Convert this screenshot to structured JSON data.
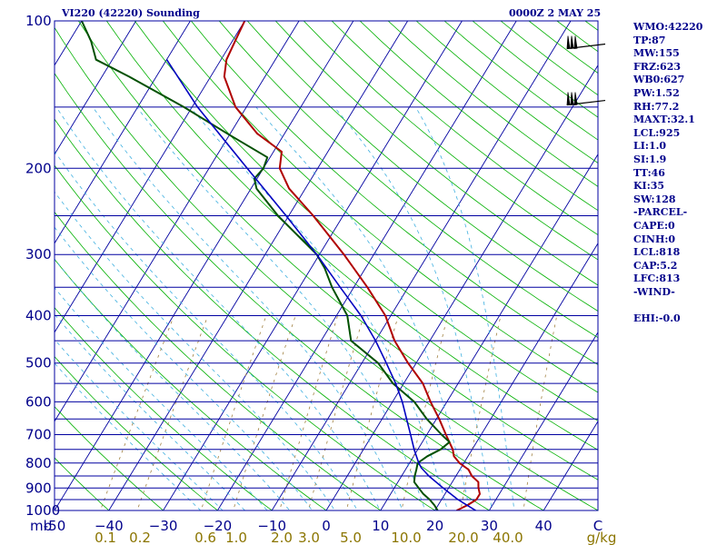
{
  "header": {
    "title_left": "VI220 (42220) Sounding",
    "title_right": "0000Z  2 MAY 25"
  },
  "indices": [
    "WMO:42220",
    "TP:87",
    "MW:155",
    "FRZ:623",
    "WB0:627",
    "PW:1.52",
    "RH:77.2",
    "MAXT:32.1",
    "LCL:925",
    "LI:1.0",
    "SI:1.9",
    "TT:46",
    "KI:35",
    "SW:128",
    "-PARCEL-",
    "CAPE:0",
    "CINH:0",
    "LCL:818",
    "CAP:5.2",
    "LFC:813",
    "-WIND-",
    "",
    "EHI:-0.0"
  ],
  "chart_data": {
    "type": "line",
    "chart_kind": "skew-t log-p sounding",
    "pressure_unit_label": "mb",
    "mixing_ratio_unit_label": "g/kg",
    "pressure_ticks": [
      1000,
      900,
      800,
      700,
      600,
      500,
      400,
      300,
      200,
      100
    ],
    "temperature_ticks": [
      -50,
      -40,
      -30,
      -20,
      -10,
      0,
      10,
      20,
      30,
      40
    ],
    "temperature_tick_labels": [
      "-50",
      "−40",
      "−30",
      "−20",
      "−10",
      "0",
      "10",
      "20",
      "30",
      "40"
    ],
    "temperature_last_label": "C",
    "mixing_ratio_ticks": [
      0.1,
      0.2,
      0.6,
      1.0,
      2.0,
      3.0,
      5.0,
      10.0,
      20.0,
      40.0
    ],
    "mixing_ratio_labels": [
      "0.1",
      "0.2",
      "0.6",
      "1.0",
      "2.0",
      "3.0",
      "5.0",
      "10.0",
      "20.0",
      "40.0"
    ],
    "isobars": [
      1000,
      950,
      900,
      850,
      800,
      750,
      700,
      650,
      600,
      550,
      500,
      450,
      400,
      350,
      300,
      250,
      200,
      150,
      100
    ],
    "xlim": [
      -50,
      50
    ],
    "plim": [
      1000,
      100
    ],
    "colors": {
      "temperature": "#b00000",
      "dewpoint": "#005000",
      "parcel": "#0000c0",
      "isobar": "#0000a0",
      "isotherm": "#0000a0",
      "dry_adiabat": "#00b000",
      "moist_adiabat": "#40b0e0",
      "mixing_ratio": "#a08040",
      "axis_text": "#00008b",
      "mr_text": "#8b7500"
    },
    "series": [
      {
        "id": "temperature",
        "points": [
          {
            "p": 1000,
            "t": 24.0
          },
          {
            "p": 975,
            "t": 25.4
          },
          {
            "p": 950,
            "t": 26.4
          },
          {
            "p": 925,
            "t": 26.4
          },
          {
            "p": 900,
            "t": 25.5
          },
          {
            "p": 875,
            "t": 24.8
          },
          {
            "p": 850,
            "t": 22.9
          },
          {
            "p": 825,
            "t": 21.6
          },
          {
            "p": 800,
            "t": 19.2
          },
          {
            "p": 775,
            "t": 17.4
          },
          {
            "p": 750,
            "t": 16.4
          },
          {
            "p": 700,
            "t": 13.5
          },
          {
            "p": 650,
            "t": 10.5
          },
          {
            "p": 600,
            "t": 7.0
          },
          {
            "p": 550,
            "t": 3.5
          },
          {
            "p": 500,
            "t": -1.5
          },
          {
            "p": 450,
            "t": -6.5
          },
          {
            "p": 400,
            "t": -11.0
          },
          {
            "p": 350,
            "t": -17.5
          },
          {
            "p": 300,
            "t": -25.5
          },
          {
            "p": 250,
            "t": -35.5
          },
          {
            "p": 220,
            "t": -43.0
          },
          {
            "p": 200,
            "t": -47.0
          },
          {
            "p": 185,
            "t": -48.5
          },
          {
            "p": 170,
            "t": -55.0
          },
          {
            "p": 150,
            "t": -62.0
          },
          {
            "p": 130,
            "t": -67.5
          },
          {
            "p": 120,
            "t": -69.0
          },
          {
            "p": 110,
            "t": -69.5
          },
          {
            "p": 100,
            "t": -70.0
          }
        ]
      },
      {
        "id": "dewpoint",
        "points": [
          {
            "p": 1000,
            "t": 20.5
          },
          {
            "p": 975,
            "t": 19.3
          },
          {
            "p": 950,
            "t": 17.8
          },
          {
            "p": 925,
            "t": 16.0
          },
          {
            "p": 900,
            "t": 14.5
          },
          {
            "p": 875,
            "t": 13.0
          },
          {
            "p": 850,
            "t": 12.4
          },
          {
            "p": 825,
            "t": 12.0
          },
          {
            "p": 800,
            "t": 11.5
          },
          {
            "p": 775,
            "t": 12.5
          },
          {
            "p": 750,
            "t": 14.2
          },
          {
            "p": 725,
            "t": 15.0
          },
          {
            "p": 700,
            "t": 12.7
          },
          {
            "p": 650,
            "t": 8.2
          },
          {
            "p": 600,
            "t": 4.0
          },
          {
            "p": 550,
            "t": -2.0
          },
          {
            "p": 500,
            "t": -7.0
          },
          {
            "p": 450,
            "t": -14.5
          },
          {
            "p": 400,
            "t": -18.0
          },
          {
            "p": 350,
            "t": -24.0
          },
          {
            "p": 320,
            "t": -27.5
          },
          {
            "p": 300,
            "t": -30.5
          },
          {
            "p": 250,
            "t": -42.0
          },
          {
            "p": 220,
            "t": -49.0
          },
          {
            "p": 210,
            "t": -50.5
          },
          {
            "p": 200,
            "t": -50.0
          },
          {
            "p": 190,
            "t": -50.5
          },
          {
            "p": 170,
            "t": -60.5
          },
          {
            "p": 150,
            "t": -71.5
          },
          {
            "p": 130,
            "t": -85.0
          },
          {
            "p": 120,
            "t": -93.0
          },
          {
            "p": 110,
            "t": -96.0
          },
          {
            "p": 100,
            "t": -100.0
          }
        ]
      },
      {
        "id": "parcel",
        "points": [
          {
            "p": 1000,
            "t": 27.5
          },
          {
            "p": 950,
            "t": 23.0
          },
          {
            "p": 900,
            "t": 19.0
          },
          {
            "p": 850,
            "t": 15.0
          },
          {
            "p": 818,
            "t": 12.7
          },
          {
            "p": 800,
            "t": 11.7
          },
          {
            "p": 750,
            "t": 9.3
          },
          {
            "p": 700,
            "t": 7.0
          },
          {
            "p": 650,
            "t": 4.5
          },
          {
            "p": 600,
            "t": 1.8
          },
          {
            "p": 550,
            "t": -1.5
          },
          {
            "p": 500,
            "t": -5.5
          },
          {
            "p": 450,
            "t": -10.0
          },
          {
            "p": 400,
            "t": -15.5
          },
          {
            "p": 350,
            "t": -22.5
          },
          {
            "p": 300,
            "t": -30.5
          },
          {
            "p": 250,
            "t": -40.5
          },
          {
            "p": 200,
            "t": -53.0
          },
          {
            "p": 150,
            "t": -69.0
          },
          {
            "p": 120,
            "t": -80.0
          }
        ]
      }
    ],
    "wind_barbs": [
      {
        "p": 112,
        "barbs": 3
      },
      {
        "p": 146,
        "barbs": 3
      }
    ]
  }
}
